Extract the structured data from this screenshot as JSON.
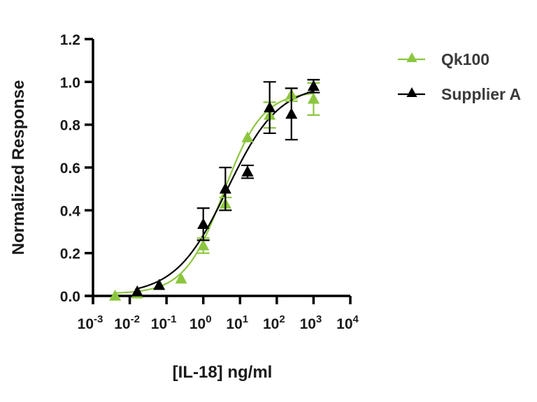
{
  "chart_data": {
    "type": "scatter",
    "title": "",
    "xlabel": "[IL-18] ng/ml",
    "ylabel": "Normalized Response",
    "xscale": "log10",
    "xlim_exponent": [
      -3,
      4
    ],
    "ylim": [
      0,
      1.2
    ],
    "x_tick_exponents": [
      -3,
      -2,
      -1,
      0,
      1,
      2,
      3,
      4
    ],
    "x_tick_base": "10",
    "x_tick_exp_labels": [
      "-3",
      "-2",
      "-1",
      "0",
      "1",
      "2",
      "3",
      "4"
    ],
    "y_ticks": [
      0.0,
      0.2,
      0.4,
      0.6,
      0.8,
      1.0,
      1.2
    ],
    "y_tick_labels": [
      "0.0",
      "0.2",
      "0.4",
      "0.6",
      "0.8",
      "1.0",
      "1.2"
    ],
    "grid": false,
    "legend_position": "right",
    "series": [
      {
        "name": "Qk100",
        "color": "#8cc63f",
        "marker": "triangle",
        "fit": {
          "bottom": 0.01,
          "top": 0.955,
          "log_ec50": 0.55,
          "hill": 0.82
        },
        "points": [
          {
            "x": 0.004,
            "y": 0.0,
            "err": 0.0
          },
          {
            "x": 0.016,
            "y": 0.01,
            "err": 0.0
          },
          {
            "x": 0.063,
            "y": 0.05,
            "err": 0.0
          },
          {
            "x": 0.25,
            "y": 0.08,
            "err": 0.0
          },
          {
            "x": 1.0,
            "y": 0.235,
            "err": 0.035
          },
          {
            "x": 4.0,
            "y": 0.43,
            "err": 0.03
          },
          {
            "x": 16.0,
            "y": 0.74,
            "err": 0.0
          },
          {
            "x": 64.0,
            "y": 0.845,
            "err": 0.06
          },
          {
            "x": 250.0,
            "y": 0.94,
            "err": 0.03
          },
          {
            "x": 1000.0,
            "y": 0.92,
            "err": 0.075
          }
        ]
      },
      {
        "name": "Supplier A",
        "color": "#000000",
        "marker": "triangle",
        "fit": {
          "bottom": 0.005,
          "top": 0.99,
          "log_ec50": 0.65,
          "hill": 0.62
        },
        "points": [
          {
            "x": 0.016,
            "y": 0.02,
            "err": 0.0
          },
          {
            "x": 0.063,
            "y": 0.05,
            "err": 0.0
          },
          {
            "x": 1.0,
            "y": 0.335,
            "err": 0.075
          },
          {
            "x": 4.0,
            "y": 0.5,
            "err": 0.1
          },
          {
            "x": 16.0,
            "y": 0.58,
            "err": 0.03
          },
          {
            "x": 64.0,
            "y": 0.88,
            "err": 0.12
          },
          {
            "x": 250.0,
            "y": 0.85,
            "err": 0.12
          },
          {
            "x": 1000.0,
            "y": 0.98,
            "err": 0.03
          }
        ]
      }
    ]
  }
}
